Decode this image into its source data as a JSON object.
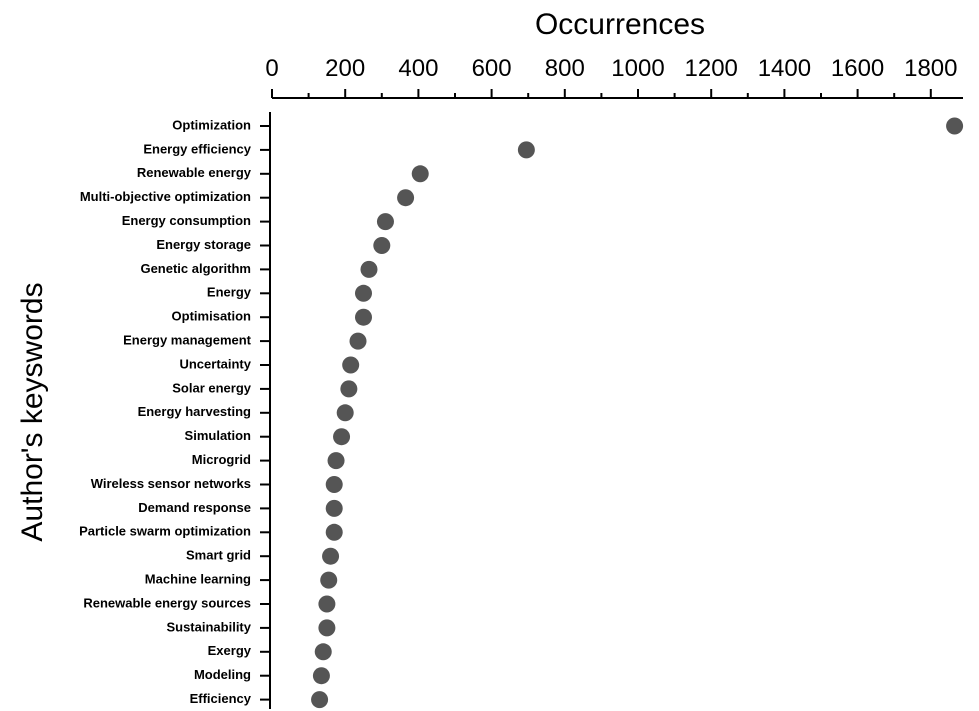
{
  "chart_data": {
    "type": "scatter",
    "title": "",
    "xlabel": "Occurrences",
    "ylabel": "Author's keyswords",
    "xlim": [
      0,
      1900
    ],
    "xticks": [
      0,
      200,
      400,
      600,
      800,
      1000,
      1200,
      1400,
      1600,
      1800
    ],
    "x_axis_position": "top",
    "grid": false,
    "marker_color": "#555555",
    "categories": [
      "Optimization",
      "Energy efficiency",
      "Renewable energy",
      "Multi-objective optimization",
      "Energy consumption",
      "Energy storage",
      "Genetic algorithm",
      "Energy",
      "Optimisation",
      "Energy management",
      "Uncertainty",
      "Solar energy",
      "Energy harvesting",
      "Simulation",
      "Microgrid",
      "Wireless sensor networks",
      "Demand response",
      "Particle swarm optimization",
      "Smart grid",
      "Machine learning",
      "Renewable energy sources",
      "Sustainability",
      "Exergy",
      "Modeling",
      "Efficiency"
    ],
    "values": [
      1865,
      695,
      405,
      365,
      310,
      300,
      265,
      250,
      250,
      235,
      215,
      210,
      200,
      190,
      175,
      170,
      170,
      170,
      160,
      155,
      150,
      150,
      140,
      135,
      130
    ]
  }
}
